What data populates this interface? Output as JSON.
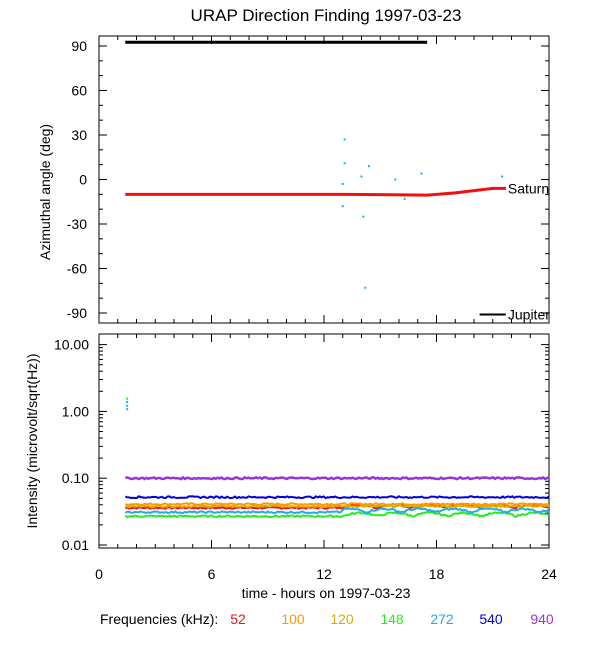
{
  "chart_data": [
    {
      "type": "scatter",
      "title": "URAP Direction Finding  1997-03-23",
      "ylabel": "Azimuthal angle (deg)",
      "ylim": [
        -90,
        90
      ],
      "xlim": [
        0,
        24
      ],
      "yticks": [
        "90",
        "60",
        "30",
        "0",
        "-30",
        "-60",
        "-90"
      ],
      "yticks_values": [
        90,
        60,
        30,
        0,
        -30,
        -60,
        -90
      ],
      "coverage_bar": {
        "x": [
          1.4,
          17.5
        ],
        "y": 88.5,
        "color": "#000000"
      },
      "reference_lines": [
        {
          "name": "Saturn",
          "color": "#ee1111",
          "x": [
            1.4,
            13.0,
            17.5,
            19.0,
            21.0,
            21.7
          ],
          "y": [
            -10,
            -10,
            -10.5,
            -9,
            -6,
            -6
          ]
        },
        {
          "name": "Jupiter",
          "color": "#000000",
          "x": [
            20.3,
            21.7
          ],
          "y": [
            -91,
            -91
          ]
        }
      ],
      "points_color": "#22aaee",
      "points": [
        [
          13.1,
          27
        ],
        [
          13.1,
          11
        ],
        [
          13.0,
          -3
        ],
        [
          13.0,
          -18
        ],
        [
          14.0,
          2
        ],
        [
          14.1,
          -25
        ],
        [
          14.4,
          9
        ],
        [
          14.2,
          -73
        ],
        [
          15.8,
          0
        ],
        [
          16.3,
          -13
        ],
        [
          17.2,
          4
        ],
        [
          21.5,
          2
        ]
      ]
    },
    {
      "type": "line",
      "ylabel": "Intensity (microvolt/sqrt(Hz))",
      "xlabel": "time - hours on 1997-03-23",
      "yscale": "log",
      "ylim": [
        0.01,
        13
      ],
      "xlim": [
        0,
        24
      ],
      "xticks": [
        "0",
        "6",
        "12",
        "18",
        "24"
      ],
      "xticks_values": [
        0,
        6,
        12,
        18,
        24
      ],
      "yticks": [
        "10.00",
        "1.00",
        "0.10",
        "0.01"
      ],
      "yticks_values": [
        10,
        1,
        0.1,
        0.01
      ],
      "legend_label": "Frequencies (kHz):",
      "series": [
        {
          "name": "52",
          "color": "#ee1111",
          "level": 0.036
        },
        {
          "name": "100",
          "color": "#ff9900",
          "level": 0.041
        },
        {
          "name": "120",
          "color": "#ddaa00",
          "level": 0.038
        },
        {
          "name": "148",
          "color": "#22ee22",
          "level": 0.027
        },
        {
          "name": "272",
          "color": "#22aaee",
          "level": 0.031
        },
        {
          "name": "540",
          "color": "#0000dd",
          "level": 0.052
        },
        {
          "name": "940",
          "color": "#9933dd",
          "level": 0.1
        }
      ],
      "spikes": [
        {
          "x": 1.5,
          "y": 1.55,
          "color": "#22ee22"
        },
        {
          "x": 1.5,
          "y": 1.38,
          "color": "#22aaee"
        },
        {
          "x": 1.5,
          "y": 1.22,
          "color": "#22aaee"
        },
        {
          "x": 1.5,
          "y": 1.08,
          "color": "#22aaee"
        }
      ]
    }
  ]
}
